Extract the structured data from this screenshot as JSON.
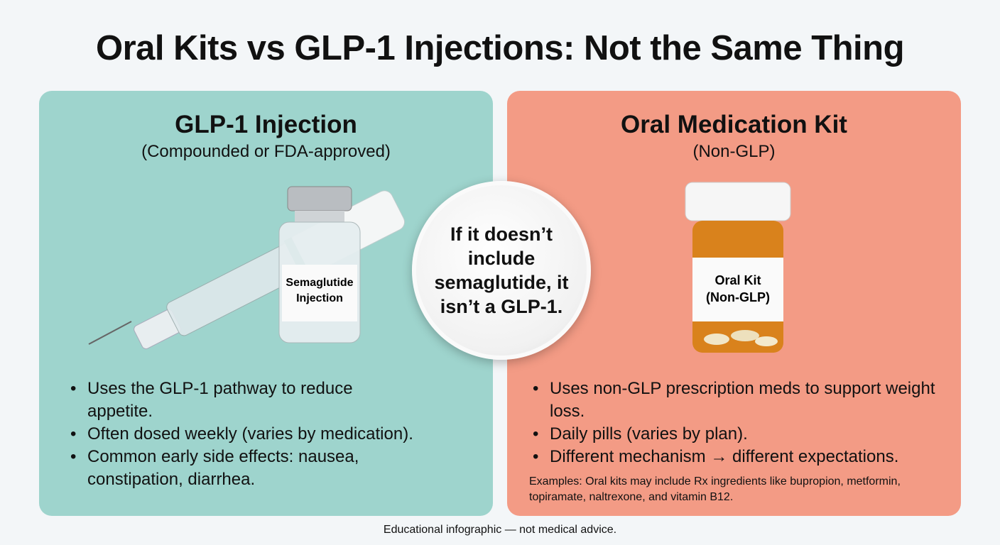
{
  "title": "Oral Kits vs GLP-1 Injections: Not the Same Thing",
  "left": {
    "heading": "GLP-1 Injection",
    "subheading": "(Compounded or FDA-approved)",
    "vial_label": [
      "Semaglutide",
      "Injection"
    ],
    "bullets": [
      "Uses the GLP-1 pathway to reduce appetite.",
      "Often dosed weekly (varies by medication).",
      "Common early side effects: nausea, constipation, diarrhea."
    ],
    "color": "#9ed4cd"
  },
  "right": {
    "heading": "Oral Medication Kit",
    "subheading": "(Non-GLP)",
    "bottle_label": [
      "Oral Kit",
      "(Non-GLP)"
    ],
    "bullets": [
      "Uses non-GLP prescription meds to support weight loss.",
      "Daily pills (varies by plan).",
      "Different mechanism → different expectations."
    ],
    "examples": "Examples: Oral kits may include Rx ingredients like bupropion, metformin, topiramate, naltrexone, and vitamin B12.",
    "color": "#f39b85"
  },
  "callout": "If it doesn’t include semaglutide, it isn’t a GLP-1.",
  "footer": "Educational infographic — not medical advice."
}
